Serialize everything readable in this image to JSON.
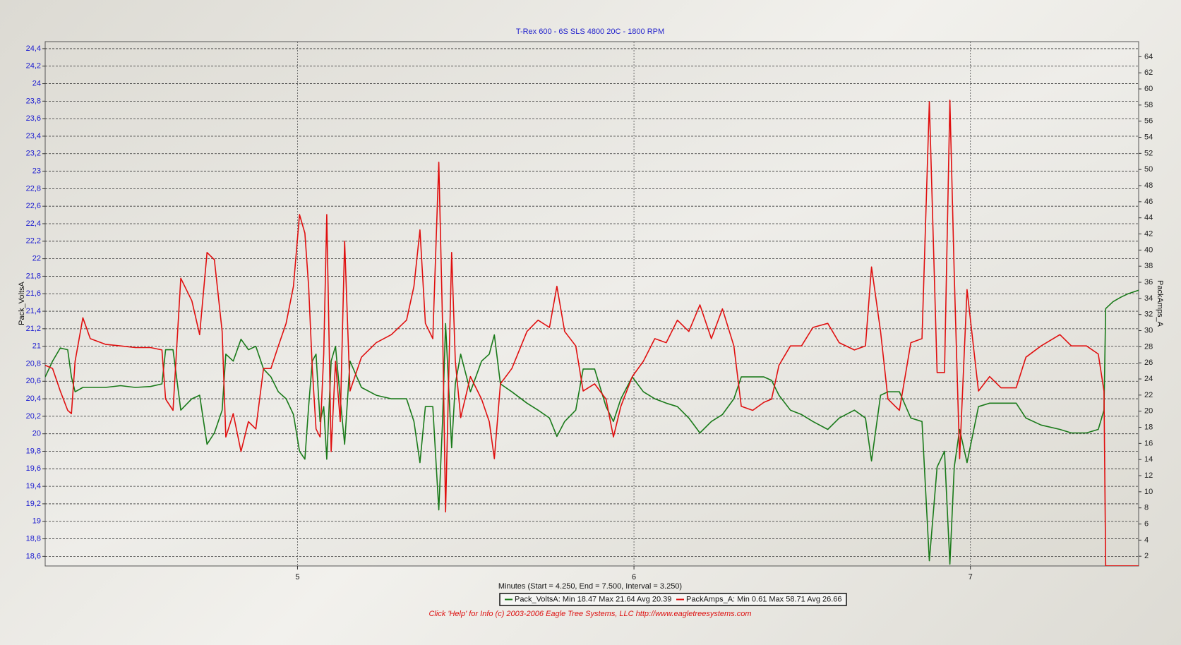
{
  "chart_data": {
    "type": "line",
    "title": "T-Rex 600 - 6S SLS 4800 20C - 1800 RPM",
    "xlabel": "Minutes (Start = 4.250,  End = 7.500,  Interval =  3.250)",
    "ylabel": "Pack_VoltsA",
    "y2label": "PackAmps_A",
    "footer": "Click 'Help' for Info  (c) 2003-2006 Eagle Tree Systems, LLC     http://www.eagletreesystems.com",
    "xlim": [
      4.25,
      7.5
    ],
    "xticks": [
      5,
      6,
      7
    ],
    "ylim": [
      18.49,
      24.48
    ],
    "yticks": [
      {
        "value": 18.6,
        "label": "18,6"
      },
      {
        "value": 18.8,
        "label": "18,8"
      },
      19,
      {
        "value": 19.2,
        "label": "19,2"
      },
      {
        "value": 19.4,
        "label": "19,4"
      },
      {
        "value": 19.6,
        "label": "19,6"
      },
      {
        "value": 19.8,
        "label": "19,8"
      },
      20,
      {
        "value": 20.2,
        "label": "20,2"
      },
      {
        "value": 20.4,
        "label": "20,4"
      },
      {
        "value": 20.6,
        "label": "20,6"
      },
      {
        "value": 20.8,
        "label": "20,8"
      },
      21,
      {
        "value": 21.2,
        "label": "21,2"
      },
      {
        "value": 21.4,
        "label": "21,4"
      },
      {
        "value": 21.6,
        "label": "21,6"
      },
      {
        "value": 21.8,
        "label": "21,8"
      },
      22,
      {
        "value": 22.2,
        "label": "22,2"
      },
      {
        "value": 22.4,
        "label": "22,4"
      },
      {
        "value": 22.6,
        "label": "22,6"
      },
      {
        "value": 22.8,
        "label": "22,8"
      },
      23,
      {
        "value": 23.2,
        "label": "23,2"
      },
      {
        "value": 23.4,
        "label": "23,4"
      },
      {
        "value": 23.6,
        "label": "23,6"
      },
      {
        "value": 23.8,
        "label": "23,8"
      },
      24,
      {
        "value": 24.2,
        "label": "24,2"
      },
      {
        "value": 24.4,
        "label": "24,4"
      }
    ],
    "y2lim": [
      0.79,
      65.87
    ],
    "y2ticks": [
      2,
      4,
      6,
      8,
      10,
      12,
      14,
      16,
      18,
      20,
      22,
      24,
      26,
      28,
      30,
      32,
      34,
      36,
      38,
      40,
      42,
      44,
      46,
      48,
      50,
      52,
      54,
      56,
      58,
      60,
      62,
      64
    ],
    "grid": true,
    "x": [
      4.25,
      4.272,
      4.295,
      4.317,
      4.328,
      4.339,
      4.362,
      4.384,
      4.429,
      4.474,
      4.518,
      4.563,
      4.597,
      4.608,
      4.63,
      4.653,
      4.686,
      4.709,
      4.731,
      4.753,
      4.776,
      4.787,
      4.809,
      4.832,
      4.854,
      4.876,
      4.899,
      4.921,
      4.943,
      4.966,
      4.988,
      5.006,
      5.022,
      5.033,
      5.044,
      5.055,
      5.067,
      5.078,
      5.087,
      5.1,
      5.113,
      5.127,
      5.14,
      5.156,
      5.19,
      5.234,
      5.279,
      5.324,
      5.346,
      5.364,
      5.38,
      5.402,
      5.42,
      5.431,
      5.44,
      5.458,
      5.469,
      5.485,
      5.514,
      5.547,
      5.57,
      5.585,
      5.603,
      5.637,
      5.682,
      5.715,
      5.749,
      5.771,
      5.794,
      5.827,
      5.849,
      5.883,
      5.917,
      5.939,
      5.961,
      5.995,
      6.028,
      6.062,
      6.096,
      6.129,
      6.163,
      6.196,
      6.23,
      6.263,
      6.297,
      6.319,
      6.353,
      6.386,
      6.409,
      6.431,
      6.465,
      6.498,
      6.532,
      6.576,
      6.61,
      6.655,
      6.688,
      6.706,
      6.733,
      6.755,
      6.789,
      6.823,
      6.856,
      6.878,
      6.901,
      6.923,
      6.939,
      6.952,
      6.968,
      6.99,
      7.024,
      7.057,
      7.091,
      7.136,
      7.165,
      7.21,
      7.266,
      7.3,
      7.345,
      7.38,
      7.397,
      7.402,
      7.424,
      7.447,
      7.469,
      7.5
    ],
    "series": [
      {
        "name": "Pack_VoltsA:  Min 18.47 Max 21.64 Avg 20.39",
        "color": "#1a7a1a",
        "values": [
          20.65,
          20.83,
          20.98,
          20.96,
          20.65,
          20.48,
          20.53,
          20.53,
          20.53,
          20.55,
          20.53,
          20.54,
          20.57,
          20.96,
          20.96,
          20.27,
          20.4,
          20.44,
          19.88,
          20.01,
          20.27,
          20.91,
          20.83,
          21.08,
          20.96,
          21.0,
          20.74,
          20.65,
          20.48,
          20.4,
          20.22,
          19.8,
          19.71,
          20.31,
          20.83,
          20.91,
          20.14,
          20.31,
          19.71,
          20.83,
          21.0,
          20.4,
          19.88,
          20.83,
          20.53,
          20.44,
          20.4,
          20.4,
          20.14,
          19.67,
          20.31,
          20.31,
          19.13,
          20.14,
          21.26,
          19.84,
          20.57,
          20.91,
          20.48,
          20.83,
          20.91,
          21.13,
          20.57,
          20.48,
          20.35,
          20.27,
          20.18,
          19.97,
          20.14,
          20.27,
          20.74,
          20.74,
          20.31,
          20.14,
          20.4,
          20.65,
          20.48,
          20.4,
          20.35,
          20.31,
          20.18,
          20.01,
          20.14,
          20.22,
          20.4,
          20.65,
          20.65,
          20.65,
          20.61,
          20.44,
          20.27,
          20.22,
          20.14,
          20.05,
          20.18,
          20.27,
          20.18,
          19.69,
          20.44,
          20.48,
          20.48,
          20.18,
          20.14,
          18.55,
          19.62,
          19.8,
          18.51,
          19.62,
          20.05,
          19.67,
          20.31,
          20.35,
          20.35,
          20.35,
          20.18,
          20.1,
          20.05,
          20.01,
          20.01,
          20.05,
          20.27,
          21.43,
          21.51,
          21.56,
          21.6,
          21.64
        ]
      },
      {
        "name": "PackAmps_A:  Min 0.61 Max 58.71 Avg 26.66",
        "color": "#e01010",
        "axis": "y2",
        "values": [
          25.7,
          25.3,
          22.5,
          20.1,
          19.7,
          26.2,
          31.6,
          29.0,
          28.3,
          28.1,
          27.9,
          27.9,
          27.6,
          21.5,
          20.1,
          36.5,
          33.7,
          29.5,
          39.7,
          38.8,
          29.9,
          16.8,
          19.7,
          15.0,
          18.7,
          17.8,
          25.3,
          25.3,
          28.1,
          30.9,
          35.5,
          44.4,
          42.1,
          35.5,
          25.3,
          17.8,
          16.8,
          27.1,
          44.4,
          15.0,
          26.2,
          18.7,
          41.1,
          22.5,
          26.7,
          28.5,
          29.5,
          31.3,
          35.5,
          42.5,
          30.9,
          29.0,
          50.9,
          30.9,
          7.5,
          39.7,
          26.2,
          19.2,
          24.3,
          21.5,
          18.7,
          14.1,
          23.4,
          25.3,
          29.9,
          31.3,
          30.4,
          35.5,
          29.9,
          28.1,
          22.5,
          23.4,
          21.5,
          16.8,
          20.6,
          24.3,
          26.2,
          29.0,
          28.5,
          31.3,
          29.9,
          33.2,
          29.0,
          32.7,
          28.1,
          20.6,
          20.1,
          21.1,
          21.5,
          25.7,
          28.1,
          28.1,
          30.4,
          30.9,
          28.5,
          27.6,
          28.1,
          37.9,
          29.9,
          21.5,
          20.1,
          28.5,
          29.0,
          58.4,
          24.8,
          24.8,
          58.6,
          36.9,
          14.1,
          35.1,
          22.5,
          24.3,
          22.9,
          22.9,
          26.7,
          28.1,
          29.5,
          28.1,
          28.1,
          27.1,
          22.5,
          0.8,
          0.8,
          0.8,
          0.8,
          0.8
        ]
      }
    ]
  }
}
